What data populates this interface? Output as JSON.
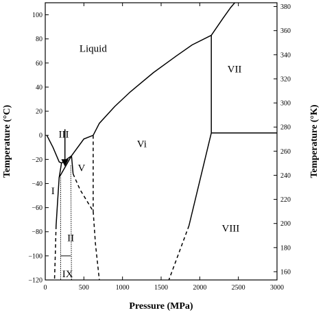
{
  "chart_data": {
    "type": "phase_diagram",
    "xlabel": "Pressure (MPa)",
    "ylabel_left": "Temperature (°C)",
    "ylabel_right": "Temperature (°K)",
    "xlim": [
      0,
      3000
    ],
    "ylim_left": [
      -120,
      110
    ],
    "ylim_right": [
      153.15,
      383.15
    ],
    "x_ticks": [
      0,
      500,
      1000,
      1500,
      2000,
      2500,
      3000
    ],
    "y_ticks_left": [
      -120,
      -100,
      -80,
      -60,
      -40,
      -20,
      0,
      20,
      40,
      60,
      80,
      100
    ],
    "y_ticks_right": [
      160,
      180,
      200,
      220,
      240,
      260,
      280,
      300,
      320,
      340,
      360,
      380
    ],
    "regions": [
      {
        "name": "Liquid",
        "x": 620,
        "y": 72
      },
      {
        "name": "VII",
        "x": 2450,
        "y": 55
      },
      {
        "name": "Vi",
        "x": 1250,
        "y": -7
      },
      {
        "name": "III",
        "x": 240,
        "y": 1
      },
      {
        "name": "V",
        "x": 470,
        "y": -27
      },
      {
        "name": "I",
        "x": 100,
        "y": -46
      },
      {
        "name": "II",
        "x": 330,
        "y": -85
      },
      {
        "name": "VIII",
        "x": 2400,
        "y": -77
      },
      {
        "name": "IX",
        "x": 290,
        "y": -115
      }
    ],
    "boundaries": [
      {
        "style": "solid",
        "points": [
          [
            20,
            0
          ],
          [
            100,
            -10
          ],
          [
            180,
            -22
          ],
          [
            210,
            -23
          ]
        ]
      },
      {
        "style": "solid",
        "points": [
          [
            210,
            -23
          ],
          [
            340,
            -17
          ]
        ]
      },
      {
        "style": "solid",
        "points": [
          [
            340,
            -17
          ],
          [
            500,
            -3
          ],
          [
            620,
            0
          ]
        ]
      },
      {
        "style": "solid",
        "points": [
          [
            620,
            0
          ],
          [
            700,
            10
          ],
          [
            900,
            24
          ],
          [
            1100,
            36
          ],
          [
            1400,
            52
          ],
          [
            1700,
            66
          ],
          [
            1900,
            75
          ],
          [
            2150,
            83
          ]
        ]
      },
      {
        "style": "solid",
        "points": [
          [
            2150,
            83
          ],
          [
            2300,
            97
          ],
          [
            2400,
            106
          ],
          [
            2520,
            115
          ]
        ]
      },
      {
        "style": "solid",
        "points": [
          [
            2150,
            83
          ],
          [
            2150,
            2
          ]
        ]
      },
      {
        "style": "solid",
        "points": [
          [
            2150,
            2
          ],
          [
            3000,
            2
          ]
        ]
      },
      {
        "style": "solid",
        "points": [
          [
            2150,
            2
          ],
          [
            1860,
            -75
          ]
        ]
      },
      {
        "style": "dashed",
        "points": [
          [
            1860,
            -75
          ],
          [
            1600,
            -120
          ]
        ]
      },
      {
        "style": "solid",
        "points": [
          [
            210,
            -23
          ],
          [
            180,
            -35
          ],
          [
            160,
            -55
          ],
          [
            140,
            -75
          ]
        ]
      },
      {
        "style": "dashed",
        "points": [
          [
            140,
            -75
          ],
          [
            130,
            -100
          ],
          [
            120,
            -120
          ]
        ]
      },
      {
        "style": "solid",
        "points": [
          [
            180,
            -35
          ],
          [
            340,
            -17
          ]
        ]
      },
      {
        "style": "solid",
        "points": [
          [
            340,
            -17
          ],
          [
            360,
            -32
          ]
        ]
      },
      {
        "style": "dashed",
        "points": [
          [
            360,
            -32
          ],
          [
            450,
            -45
          ],
          [
            620,
            -63
          ]
        ]
      },
      {
        "style": "dashed",
        "points": [
          [
            620,
            0
          ],
          [
            620,
            -63
          ]
        ]
      },
      {
        "style": "dashed",
        "points": [
          [
            620,
            -63
          ],
          [
            650,
            -90
          ],
          [
            700,
            -120
          ]
        ]
      },
      {
        "style": "dotted",
        "points": [
          [
            200,
            -35
          ],
          [
            200,
            -120
          ]
        ]
      },
      {
        "style": "dotted",
        "points": [
          [
            330,
            -25
          ],
          [
            340,
            -120
          ]
        ]
      },
      {
        "style": "thin",
        "points": [
          [
            200,
            -100
          ],
          [
            330,
            -100
          ]
        ]
      },
      {
        "style": "solid",
        "points": [
          [
            255,
            5
          ],
          [
            255,
            -25
          ]
        ],
        "arrow": true
      }
    ]
  }
}
